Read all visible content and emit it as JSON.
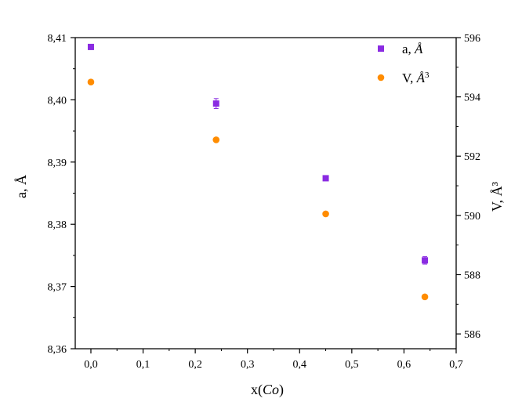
{
  "chart_data": {
    "type": "scatter",
    "xlabel": "x(Co)",
    "xlabel_parts": {
      "prefix": "x(",
      "italic": "Co",
      "suffix": ")"
    },
    "ylabel_left": "a, Å",
    "ylabel_right": "V, Å³",
    "x_ticks": [
      "0,0",
      "0,1",
      "0,2",
      "0,3",
      "0,4",
      "0,5",
      "0,6",
      "0,7"
    ],
    "xlim": [
      -0.03,
      0.7
    ],
    "ylim_left": [
      8.36,
      8.41
    ],
    "y_ticks_left": [
      "8,36",
      "8,37",
      "8,38",
      "8,39",
      "8,40",
      "8,41"
    ],
    "ylim_right": [
      585.5,
      596
    ],
    "y_ticks_right": [
      "586",
      "588",
      "590",
      "592",
      "594",
      "596"
    ],
    "grid": false,
    "legend_placement": "top-right",
    "series": [
      {
        "name": "a, Å",
        "name_parts": {
          "prefix": "a, ",
          "italic": "Å"
        },
        "axis": "left",
        "marker": "square",
        "color": "#8a2be2",
        "x": [
          0.0,
          0.24,
          0.45,
          0.64
        ],
        "y": [
          8.4085,
          8.3994,
          8.3874,
          8.3742
        ],
        "err": [
          0.0004,
          0.0008,
          0.0002,
          0.0006
        ]
      },
      {
        "name": "V, Å³",
        "name_parts": {
          "prefix": "V, ",
          "italic": "Å",
          "sup": "3"
        },
        "axis": "right",
        "marker": "circle",
        "color": "#ff8c00",
        "x": [
          0.0,
          0.24,
          0.45,
          0.64
        ],
        "y": [
          594.5,
          592.55,
          590.05,
          587.25
        ],
        "err": [
          0,
          0,
          0,
          0
        ]
      }
    ]
  }
}
